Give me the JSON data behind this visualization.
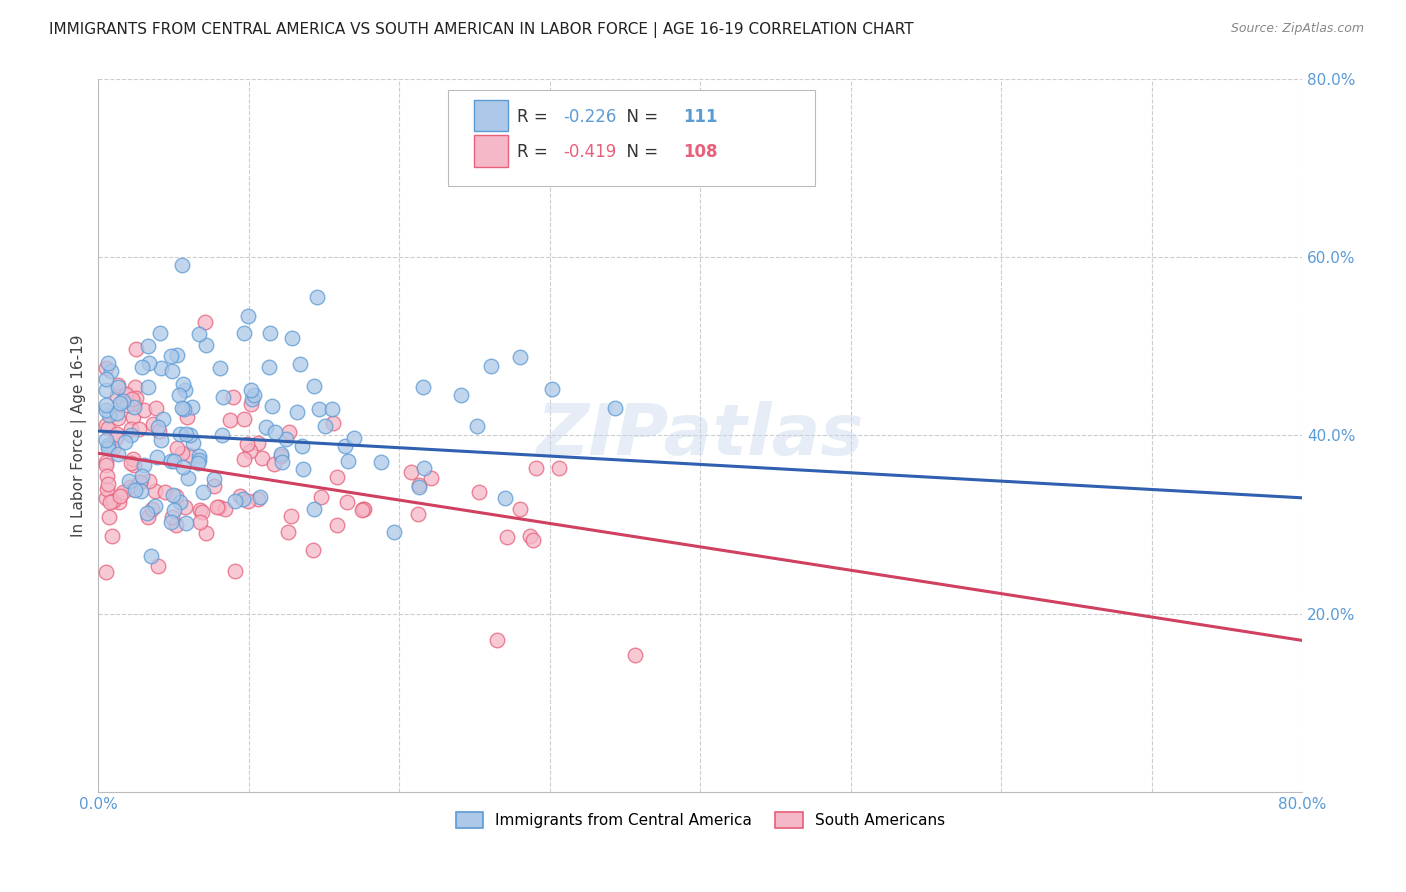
{
  "title": "IMMIGRANTS FROM CENTRAL AMERICA VS SOUTH AMERICAN IN LABOR FORCE | AGE 16-19 CORRELATION CHART",
  "source": "Source: ZipAtlas.com",
  "ylabel": "In Labor Force | Age 16-19",
  "xlim": [
    0.0,
    0.8
  ],
  "ylim": [
    0.0,
    0.8
  ],
  "xticks": [
    0.0,
    0.1,
    0.2,
    0.3,
    0.4,
    0.5,
    0.6,
    0.7,
    0.8
  ],
  "xticklabels": [
    "0.0%",
    "",
    "",
    "",
    "",
    "",
    "",
    "",
    "80.0%"
  ],
  "ytick_positions": [
    0.2,
    0.4,
    0.6,
    0.8
  ],
  "ytick_labels": [
    "20.0%",
    "40.0%",
    "60.0%",
    "80.0%"
  ],
  "blue_R": "-0.226",
  "blue_N": "111",
  "pink_R": "-0.419",
  "pink_N": "108",
  "blue_fill_color": "#adc8e8",
  "pink_fill_color": "#f5b8c8",
  "blue_edge_color": "#5b9bd5",
  "pink_edge_color": "#e8607a",
  "blue_line_color": "#3060b0",
  "pink_line_color": "#d04060",
  "legend1_label": "Immigrants from Central America",
  "legend2_label": "South Americans",
  "watermark": "ZIPatlas",
  "blue_line_y0": 0.405,
  "blue_line_y1": 0.33,
  "pink_line_y0": 0.38,
  "pink_line_y1": 0.17
}
